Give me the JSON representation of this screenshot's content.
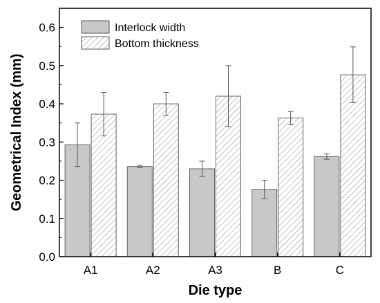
{
  "chart_data": {
    "type": "bar",
    "xlabel": "Die type",
    "ylabel": "Geometrical Index (mm)",
    "categories": [
      "A1",
      "A2",
      "A3",
      "B",
      "C"
    ],
    "ylim": [
      0,
      0.65
    ],
    "yticks": [
      "0.0",
      "0.1",
      "0.2",
      "0.3",
      "0.4",
      "0.5",
      "0.6"
    ],
    "legend_position": "top-left",
    "series": [
      {
        "name": "Interlock width",
        "fill": "solid",
        "color": "#c8c8c8",
        "values": [
          0.293,
          0.236,
          0.23,
          0.176,
          0.262
        ],
        "errors": [
          0.057,
          0.003,
          0.02,
          0.024,
          0.007
        ]
      },
      {
        "name": "Bottom thickness",
        "fill": "hatched",
        "color": "#ffffff",
        "values": [
          0.373,
          0.4,
          0.42,
          0.363,
          0.476
        ],
        "errors": [
          0.057,
          0.03,
          0.08,
          0.017,
          0.073
        ]
      }
    ]
  }
}
